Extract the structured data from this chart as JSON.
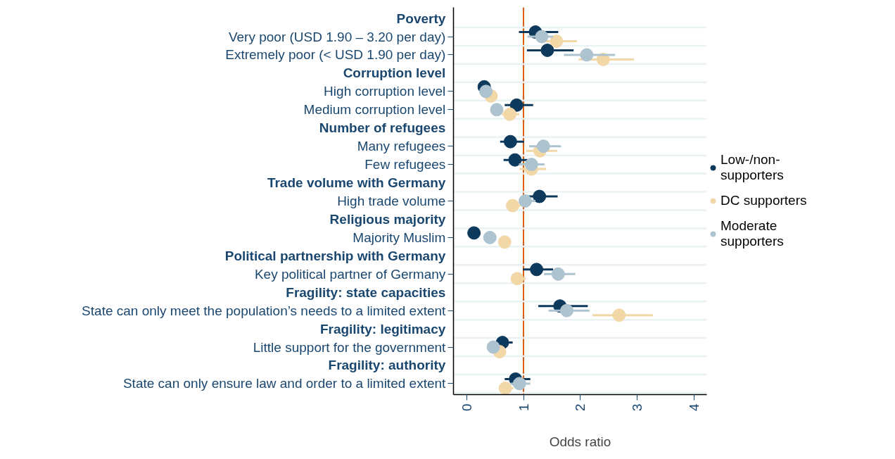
{
  "chart_data": {
    "type": "scatter",
    "orientation": "horizontal",
    "categories": [
      "Poverty",
      "Very poor (USD 1.90 – 3.20 per day)",
      "Extremely poor (< USD 1.90 per day)",
      "Corruption level",
      "High corruption level",
      "Medium corruption level",
      "Number of refugees",
      "Many refugees",
      "Few refugees",
      "Trade volume with Germany",
      "High trade volume",
      "Religious majority",
      "Majority Muslim",
      "Political partnership with Germany",
      "Key political partner of Germany",
      "Fragility: state capacities",
      "State can only meet the population’s needs to a limited extent",
      "Fragility: legitimacy",
      "Little support for the government",
      "Fragility: authority",
      "State can only ensure law and order to a limited extent"
    ],
    "series": [
      {
        "name": "Low-/non-\nsupporters",
        "color": "#0d3a5c",
        "values": [
          null,
          1.21,
          1.42,
          null,
          0.31,
          0.88,
          null,
          0.77,
          0.85,
          null,
          1.28,
          null,
          0.13,
          null,
          1.23,
          null,
          1.64,
          null,
          0.63,
          null,
          0.86
        ],
        "errors": [
          null,
          [
            0.92,
            1.61
          ],
          [
            1.06,
            1.88
          ],
          null,
          null,
          [
            0.67,
            1.17
          ],
          null,
          [
            0.59,
            1.01
          ],
          [
            0.65,
            1.07
          ],
          null,
          [
            1.09,
            1.6
          ],
          null,
          null,
          null,
          [
            0.99,
            1.52
          ],
          null,
          [
            1.26,
            2.13
          ],
          null,
          [
            0.55,
            0.81
          ],
          null,
          [
            0.67,
            1.12
          ]
        ]
      },
      {
        "name": "DC supporters",
        "color": "#f2d8a7",
        "values": [
          null,
          1.58,
          2.4,
          null,
          0.43,
          0.76,
          null,
          1.29,
          1.14,
          null,
          0.81,
          null,
          0.67,
          null,
          0.89,
          null,
          2.68,
          null,
          0.58,
          null,
          0.68
        ],
        "errors": [
          null,
          [
            1.3,
            1.94
          ],
          [
            1.97,
            2.94
          ],
          null,
          null,
          [
            0.62,
            0.93
          ],
          null,
          [
            1.05,
            1.59
          ],
          [
            0.93,
            1.4
          ],
          null,
          [
            0.7,
            0.95
          ],
          null,
          [
            0.6,
            0.75
          ],
          null,
          [
            0.78,
            1.04
          ],
          null,
          [
            2.21,
            3.27
          ],
          null,
          [
            0.5,
            0.68
          ],
          null,
          [
            0.57,
            0.82
          ]
        ]
      },
      {
        "name": "Moderate\nsupporters",
        "color": "#adc3cf",
        "values": [
          null,
          1.32,
          2.11,
          null,
          0.34,
          0.53,
          null,
          1.35,
          1.14,
          null,
          1.03,
          null,
          0.41,
          null,
          1.61,
          null,
          1.76,
          null,
          0.47,
          null,
          0.93
        ],
        "errors": [
          null,
          [
            1.07,
            1.52
          ],
          [
            1.71,
            2.61
          ],
          null,
          null,
          null,
          null,
          [
            1.1,
            1.66
          ],
          [
            0.92,
            1.37
          ],
          null,
          [
            0.93,
            1.21
          ],
          null,
          null,
          null,
          [
            1.36,
            1.91
          ],
          null,
          [
            1.44,
            2.16
          ],
          null,
          null,
          null,
          [
            0.78,
            1.12
          ]
        ]
      }
    ],
    "xlabel": "Odds ratio",
    "xlim": [
      -0.23,
      4.22
    ],
    "xticks": [
      0,
      1,
      2,
      3,
      4
    ],
    "ref_lines": [
      {
        "axis": "x",
        "value": 1,
        "color": "#d95f0e"
      }
    ],
    "grid": "y",
    "legend": "right",
    "marker": "circle"
  }
}
